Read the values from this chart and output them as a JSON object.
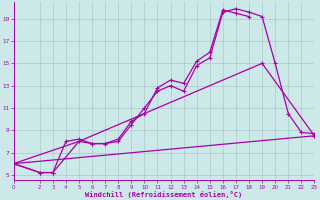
{
  "bg_color": "#cce8e8",
  "line_color": "#aa00aa",
  "grid_color": "#aacccc",
  "xlabel": "Windchill (Refroidissement éolien,°C)",
  "xlim": [
    0,
    23
  ],
  "ylim": [
    4.5,
    20.5
  ],
  "yticks": [
    5,
    7,
    9,
    11,
    13,
    15,
    17,
    19
  ],
  "xticks": [
    0,
    2,
    3,
    4,
    5,
    6,
    7,
    8,
    9,
    10,
    11,
    12,
    13,
    14,
    15,
    16,
    17,
    18,
    19,
    20,
    21,
    22,
    23
  ],
  "line1_x": [
    0,
    2,
    3,
    4,
    5,
    6,
    7,
    8,
    9,
    10,
    11,
    12,
    13,
    14,
    15,
    16,
    17,
    18,
    19,
    20,
    21,
    22,
    23
  ],
  "line1_y": [
    6.0,
    5.2,
    5.2,
    8.0,
    8.2,
    7.8,
    7.8,
    8.0,
    9.5,
    11.0,
    12.5,
    13.0,
    12.5,
    14.8,
    15.5,
    19.6,
    19.9,
    19.6,
    19.2,
    15.0,
    10.5,
    8.8,
    8.7
  ],
  "line2_x": [
    0,
    2,
    3,
    5,
    6,
    7,
    8,
    9,
    10,
    11,
    12,
    13,
    14,
    15,
    16,
    17,
    18
  ],
  "line2_y": [
    6.0,
    5.2,
    5.2,
    8.0,
    7.8,
    7.8,
    8.2,
    9.8,
    10.5,
    12.8,
    13.5,
    13.2,
    15.2,
    16.0,
    19.8,
    19.5,
    19.2
  ],
  "line3_x": [
    0,
    5,
    19,
    23
  ],
  "line3_y": [
    6.0,
    8.0,
    15.0,
    8.5
  ],
  "line4_x": [
    0,
    23
  ],
  "line4_y": [
    6.0,
    8.5
  ]
}
